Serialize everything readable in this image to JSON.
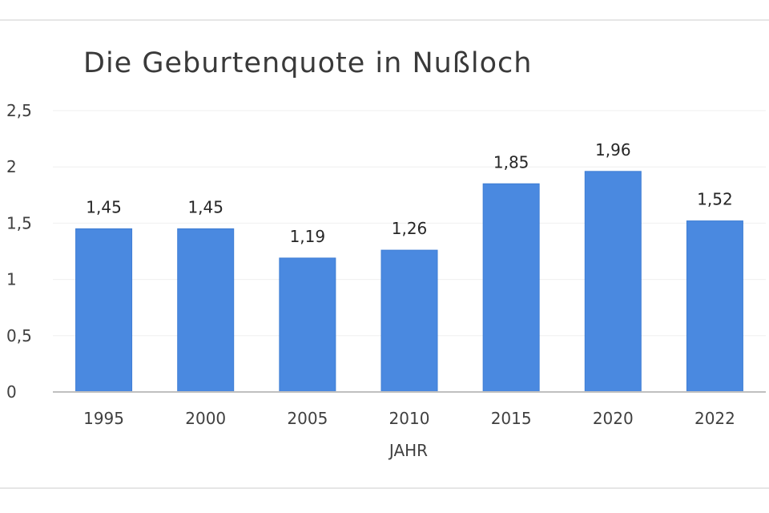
{
  "chart_data": {
    "type": "bar",
    "title": "Die Geburtenquote in Nußloch",
    "xlabel": "JAHR",
    "ylabel": "",
    "categories": [
      "1995",
      "2000",
      "2005",
      "2010",
      "2015",
      "2020",
      "2022"
    ],
    "values": [
      1.45,
      1.45,
      1.19,
      1.26,
      1.85,
      1.96,
      1.52
    ],
    "data_labels": [
      "1,45",
      "1,45",
      "1,19",
      "1,26",
      "1,85",
      "1,96",
      "1,52"
    ],
    "ylim": [
      0,
      2.5
    ],
    "yticks": [
      0,
      0.5,
      1,
      1.5,
      2,
      2.5
    ],
    "ytick_labels": [
      "0",
      "0,5",
      "1",
      "1,5",
      "2",
      "2,5"
    ],
    "grid": true,
    "legend": "none",
    "colors": {
      "bar": "#4a89e0",
      "bar_edge": "#3f7ed4",
      "gridline": "#efefef",
      "axis": "#bfbfbf"
    }
  }
}
